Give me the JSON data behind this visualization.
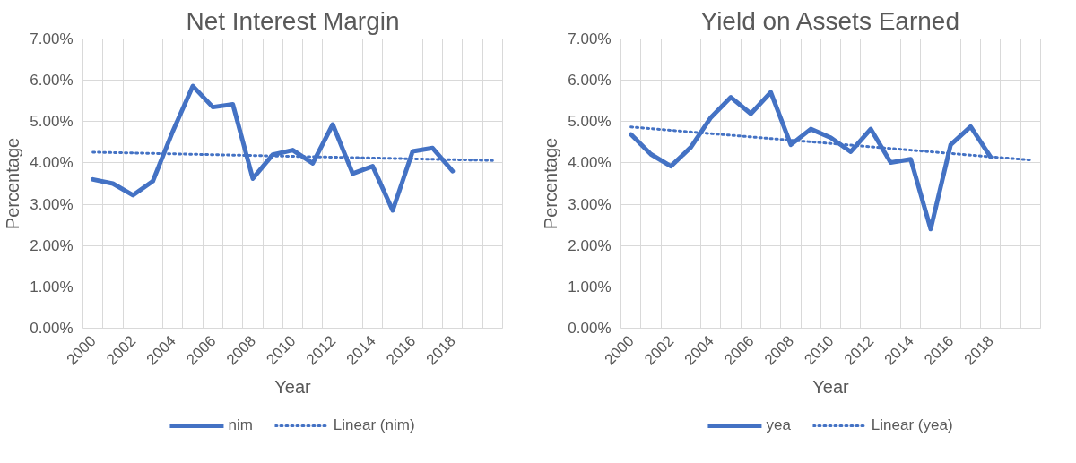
{
  "chart_data": [
    {
      "type": "line",
      "title": "Net Interest Margin",
      "xlabel": "Year",
      "ylabel": "Percentage",
      "categories": [
        "2000",
        null,
        "2002",
        null,
        "2004",
        null,
        "2006",
        null,
        "2008",
        null,
        "2010",
        null,
        "2012",
        null,
        "2014",
        null,
        "2016",
        null,
        "2018",
        null,
        null
      ],
      "series": [
        {
          "name": "nim",
          "color": "#4472c4",
          "line_style": "solid",
          "values": [
            3.6,
            3.5,
            3.22,
            3.56,
            4.77,
            5.86,
            5.35,
            5.42,
            3.62,
            4.2,
            4.31,
            3.99,
            4.93,
            3.74,
            3.92,
            2.85,
            4.28,
            4.36,
            3.8,
            null,
            null
          ]
        },
        {
          "name": "Linear (nim)",
          "color": "#4472c4",
          "line_style": "dotted",
          "values": [
            4.26,
            4.25,
            4.24,
            4.23,
            4.22,
            4.21,
            4.2,
            4.19,
            4.18,
            4.17,
            4.16,
            4.15,
            4.14,
            4.13,
            4.12,
            4.11,
            4.1,
            4.09,
            4.08,
            4.07,
            4.06
          ]
        }
      ],
      "ylim": [
        0,
        7
      ],
      "yticks": [
        {
          "value": 0,
          "label": "0.00%"
        },
        {
          "value": 1,
          "label": "1.00%"
        },
        {
          "value": 2,
          "label": "2.00%"
        },
        {
          "value": 3,
          "label": "3.00%"
        },
        {
          "value": 4,
          "label": "4.00%"
        },
        {
          "value": 5,
          "label": "5.00%"
        },
        {
          "value": 6,
          "label": "6.00%"
        },
        {
          "value": 7,
          "label": "7.00%"
        }
      ],
      "grid": true,
      "legend": "bottom",
      "marker": "none"
    },
    {
      "type": "line",
      "title": "Yield on Assets Earned",
      "xlabel": "Year",
      "ylabel": "Percentage",
      "categories": [
        "2000",
        null,
        "2002",
        null,
        "2004",
        null,
        "2006",
        null,
        "2008",
        null,
        "2010",
        null,
        "2012",
        null,
        "2014",
        null,
        "2016",
        null,
        "2018",
        null,
        null
      ],
      "series": [
        {
          "name": "yea",
          "color": "#4472c4",
          "line_style": "solid",
          "values": [
            4.69,
            4.21,
            3.92,
            4.38,
            5.1,
            5.59,
            5.19,
            5.71,
            4.44,
            4.82,
            4.61,
            4.27,
            4.82,
            4.01,
            4.09,
            2.4,
            4.44,
            4.88,
            4.14,
            null,
            null
          ]
        },
        {
          "name": "Linear (yea)",
          "color": "#4472c4",
          "line_style": "dotted",
          "values": [
            4.87,
            4.83,
            4.79,
            4.75,
            4.71,
            4.67,
            4.63,
            4.59,
            4.55,
            4.51,
            4.47,
            4.43,
            4.39,
            4.35,
            4.31,
            4.27,
            4.23,
            4.19,
            4.15,
            4.11,
            4.07
          ]
        }
      ],
      "ylim": [
        0,
        7
      ],
      "yticks": [
        {
          "value": 0,
          "label": "0.00%"
        },
        {
          "value": 1,
          "label": "1.00%"
        },
        {
          "value": 2,
          "label": "2.00%"
        },
        {
          "value": 3,
          "label": "3.00%"
        },
        {
          "value": 4,
          "label": "4.00%"
        },
        {
          "value": 5,
          "label": "5.00%"
        },
        {
          "value": 6,
          "label": "6.00%"
        },
        {
          "value": 7,
          "label": "7.00%"
        }
      ],
      "grid": true,
      "legend": "bottom",
      "marker": "none"
    }
  ]
}
